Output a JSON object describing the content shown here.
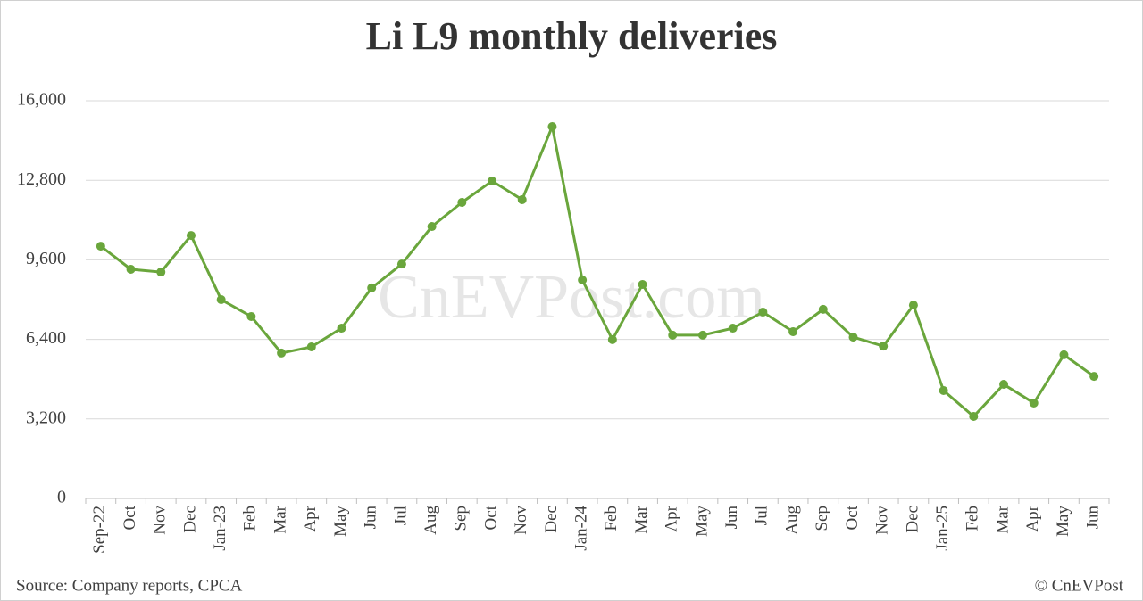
{
  "chart_data": {
    "type": "line",
    "title": "Li L9 monthly deliveries",
    "categories": [
      "Sep-22",
      "Oct",
      "Nov",
      "Dec",
      "Jan-23",
      "Feb",
      "Mar",
      "Apr",
      "May",
      "Jun",
      "Jul",
      "Aug",
      "Sep",
      "Oct",
      "Nov",
      "Dec",
      "Jan-24",
      "Feb",
      "Mar",
      "Apr",
      "May",
      "Jun",
      "Jul",
      "Aug",
      "Sep",
      "Oct",
      "Nov",
      "Dec",
      "Jan-25",
      "Feb",
      "Mar",
      "Apr",
      "May",
      "Jun"
    ],
    "series": [
      {
        "name": "Li L9",
        "color": "#6aa63c",
        "values": [
          10150,
          9220,
          9110,
          10580,
          8000,
          7320,
          5850,
          6100,
          6850,
          8470,
          9430,
          10940,
          11910,
          12770,
          12020,
          14960,
          8790,
          6390,
          8610,
          6570,
          6570,
          6850,
          7500,
          6710,
          7610,
          6490,
          6130,
          7780,
          4340,
          3300,
          4590,
          3840,
          5780,
          4910
        ]
      }
    ],
    "ylim": [
      0,
      16000
    ],
    "yticks": [
      0,
      {
        "value": 3200,
        "label": "3,200"
      },
      {
        "value": 6400,
        "label": "6,400"
      },
      {
        "value": 9600,
        "label": "9,600"
      },
      {
        "value": 12800,
        "label": "12,800"
      },
      {
        "value": 16000,
        "label": "16,000"
      }
    ],
    "grid": true,
    "watermark": "CnEVPost.com",
    "source": "Source: Company reports, CPCA",
    "credit": "© CnEVPost"
  }
}
